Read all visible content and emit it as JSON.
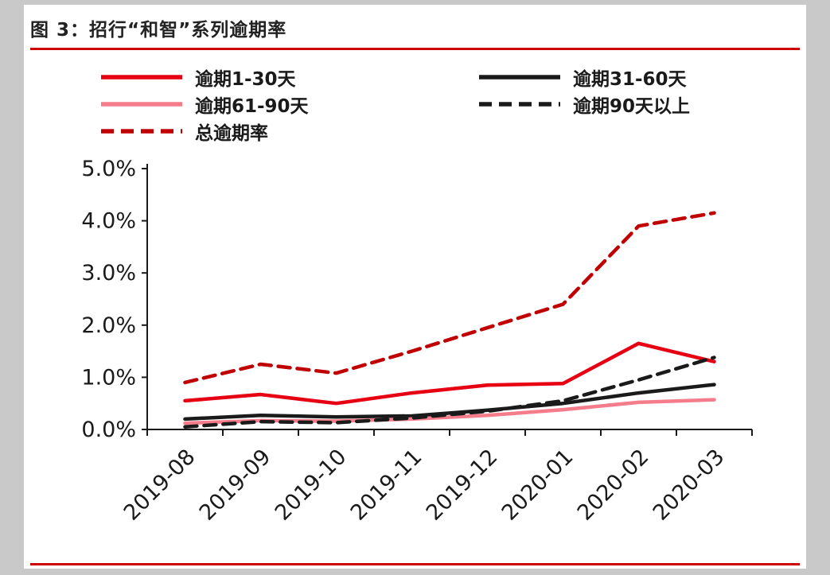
{
  "figure": {
    "title": "图 3：招行“和智”系列逾期率",
    "accent_color": "#cc0000"
  },
  "chart_data": {
    "type": "line",
    "title": "招行“和智”系列逾期率",
    "categories": [
      "2019-08",
      "2019-09",
      "2019-10",
      "2019-11",
      "2019-12",
      "2020-01",
      "2020-02",
      "2020-03"
    ],
    "xlabel": "",
    "ylabel": "",
    "ylim": [
      0,
      5
    ],
    "y_tick_step": 1,
    "y_tick_labels": [
      "0.0%",
      "1.0%",
      "2.0%",
      "3.0%",
      "4.0%",
      "5.0%"
    ],
    "grid": false,
    "legend_position": "top",
    "axis_color": "#1a1a1a",
    "series": [
      {
        "name": "逾期1-30天",
        "color": "#e60012",
        "dash": "solid",
        "values": [
          0.55,
          0.67,
          0.5,
          0.7,
          0.85,
          0.88,
          1.65,
          1.3
        ]
      },
      {
        "name": "逾期31-60天",
        "color": "#1a1a1a",
        "dash": "solid",
        "values": [
          0.2,
          0.27,
          0.24,
          0.26,
          0.37,
          0.5,
          0.7,
          0.86
        ]
      },
      {
        "name": "逾期61-90天",
        "color": "#f57c8a",
        "dash": "solid",
        "values": [
          0.12,
          0.17,
          0.16,
          0.2,
          0.27,
          0.38,
          0.52,
          0.57
        ]
      },
      {
        "name": "逾期90天以上",
        "color": "#1a1a1a",
        "dash": "dashed",
        "values": [
          0.05,
          0.15,
          0.13,
          0.22,
          0.35,
          0.55,
          0.95,
          1.38
        ]
      },
      {
        "name": "总逾期率",
        "color": "#c00000",
        "dash": "dashed",
        "values": [
          0.9,
          1.25,
          1.08,
          1.5,
          1.95,
          2.4,
          3.9,
          4.15
        ]
      }
    ]
  }
}
